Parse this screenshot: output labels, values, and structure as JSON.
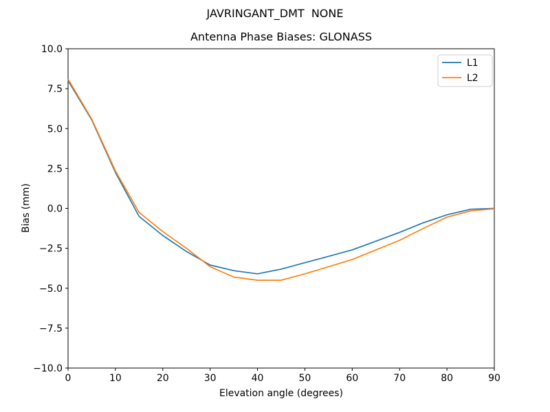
{
  "chart_data": {
    "type": "line",
    "suptitle": "JAVRINGANT_DMT  NONE",
    "title": "Antenna Phase Biases: GLONASS",
    "xlabel": "Elevation angle (degrees)",
    "ylabel": "Bias (mm)",
    "xlim": [
      0,
      90
    ],
    "ylim": [
      -10,
      10
    ],
    "grid": false,
    "background": "#ffffff",
    "frame_color": "#000000",
    "x": [
      0,
      5,
      10,
      15,
      20,
      25,
      30,
      35,
      40,
      45,
      50,
      55,
      60,
      65,
      70,
      75,
      80,
      85,
      90
    ],
    "series": [
      {
        "name": "L1",
        "color": "#1f77b4",
        "values": [
          8.0,
          5.55,
          2.25,
          -0.5,
          -1.7,
          -2.7,
          -3.55,
          -3.9,
          -4.1,
          -3.8,
          -3.4,
          -3.0,
          -2.6,
          -2.05,
          -1.5,
          -0.9,
          -0.4,
          -0.05,
          0.0
        ]
      },
      {
        "name": "L2",
        "color": "#ff7f0e",
        "values": [
          8.1,
          5.6,
          2.35,
          -0.25,
          -1.45,
          -2.5,
          -3.65,
          -4.3,
          -4.5,
          -4.5,
          -4.1,
          -3.65,
          -3.2,
          -2.6,
          -2.0,
          -1.25,
          -0.55,
          -0.15,
          -0.02
        ]
      }
    ],
    "xticks": [
      {
        "value": 0,
        "label": "0"
      },
      {
        "value": 10,
        "label": "10"
      },
      {
        "value": 20,
        "label": "20"
      },
      {
        "value": 30,
        "label": "30"
      },
      {
        "value": 40,
        "label": "40"
      },
      {
        "value": 50,
        "label": "50"
      },
      {
        "value": 60,
        "label": "60"
      },
      {
        "value": 70,
        "label": "70"
      },
      {
        "value": 80,
        "label": "80"
      },
      {
        "value": 90,
        "label": "90"
      }
    ],
    "yticks": [
      {
        "value": 10,
        "label": "10.0"
      },
      {
        "value": 7.5,
        "label": "7.5"
      },
      {
        "value": 5,
        "label": "5.0"
      },
      {
        "value": 2.5,
        "label": "2.5"
      },
      {
        "value": 0,
        "label": "0.0"
      },
      {
        "value": -2.5,
        "label": "−2.5"
      },
      {
        "value": -5,
        "label": "−5.0"
      },
      {
        "value": -7.5,
        "label": "−7.5"
      },
      {
        "value": -10,
        "label": "−10.0"
      }
    ],
    "legend": {
      "position": "upper right",
      "entries": [
        "L1",
        "L2"
      ]
    }
  }
}
